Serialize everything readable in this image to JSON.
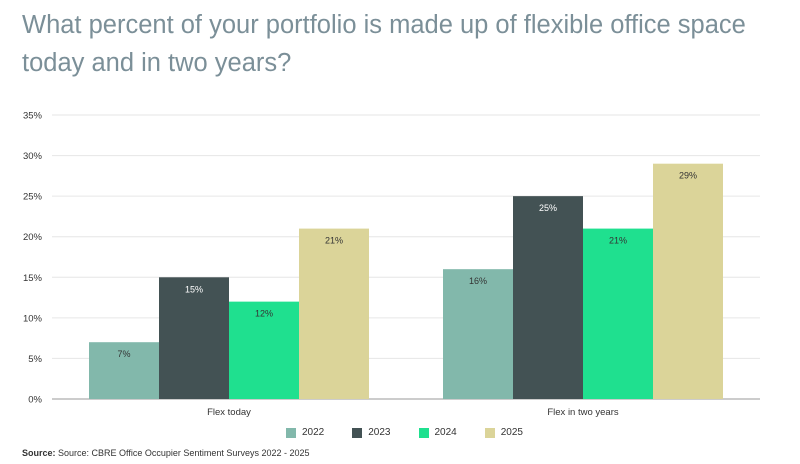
{
  "title": "What percent of your portfolio is made up of flexible office space today and in two years?",
  "source_label": "Source:",
  "source_text": "Source: CBRE Office Occupier Sentiment Surveys 2022 - 2025",
  "chart_data": {
    "type": "bar",
    "categories": [
      "Flex today",
      "Flex in two years"
    ],
    "series": [
      {
        "name": "2022",
        "color": "#82b8ab",
        "values": [
          7,
          16
        ],
        "labels": [
          "7%",
          "16%"
        ]
      },
      {
        "name": "2023",
        "color": "#435254",
        "values": [
          15,
          25
        ],
        "labels": [
          "15%",
          "25%"
        ]
      },
      {
        "name": "2024",
        "color": "#1fe08f",
        "values": [
          12,
          21
        ],
        "labels": [
          "12%",
          "21%"
        ]
      },
      {
        "name": "2025",
        "color": "#dbd499",
        "values": [
          21,
          29
        ],
        "labels": [
          "21%",
          "29%"
        ]
      }
    ],
    "ylim": [
      0,
      35
    ],
    "yticks": [
      0,
      5,
      10,
      15,
      20,
      25,
      30,
      35
    ],
    "ytick_labels": [
      "0%",
      "5%",
      "10%",
      "15%",
      "20%",
      "25%",
      "30%",
      "35%"
    ],
    "grid": true,
    "legend": "bottom"
  }
}
